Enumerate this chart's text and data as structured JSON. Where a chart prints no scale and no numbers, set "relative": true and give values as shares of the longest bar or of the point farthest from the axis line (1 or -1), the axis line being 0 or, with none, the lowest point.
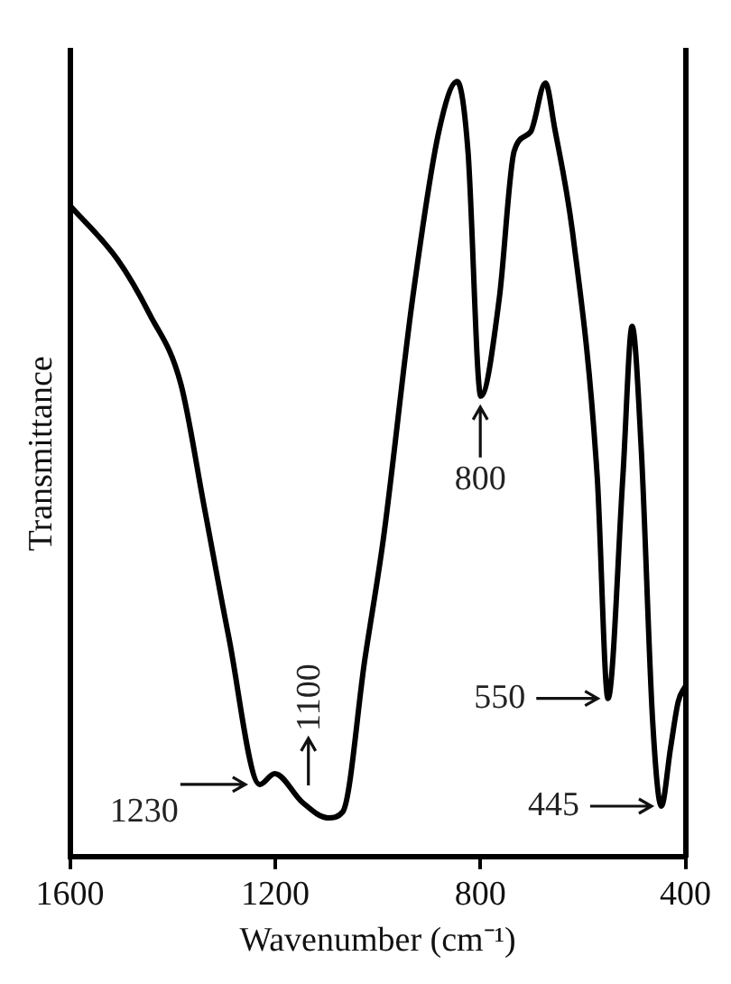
{
  "chart_data": {
    "type": "line",
    "relative": true,
    "xlabel": "Wavenumber (cm⁻¹)",
    "ylabel": "Transmittance",
    "xlim": [
      1600,
      400
    ],
    "xticks": [
      1600,
      1200,
      800,
      400
    ],
    "grid": false,
    "legend": false,
    "marker": "none",
    "line_style": "solid",
    "series": [
      {
        "color": "#000000",
        "x": [
          1600,
          1507,
          1445,
          1384,
          1338,
          1291,
          1230,
          1201,
          1147,
          1097,
          1068,
          1025,
          989,
          932,
          881,
          845,
          824,
          799,
          763,
          734,
          702,
          673,
          655,
          619,
          572,
          551,
          522,
          504,
          486,
          464,
          447,
          429,
          414,
          400
        ],
        "values": [
          0.84,
          0.77,
          0.7,
          0.61,
          0.45,
          0.285,
          0.093,
          0.107,
          0.07,
          0.05,
          0.058,
          0.255,
          0.41,
          0.72,
          0.935,
          1.0,
          0.91,
          0.594,
          0.72,
          0.91,
          0.935,
          0.998,
          0.94,
          0.8,
          0.49,
          0.204,
          0.49,
          0.684,
          0.524,
          0.176,
          0.065,
          0.14,
          0.2,
          0.22
        ]
      }
    ],
    "annotations": [
      {
        "text": "1230",
        "x": 1230,
        "y": 0.093
      },
      {
        "text": "1100",
        "x": 1100,
        "y": 0.05
      },
      {
        "text": "800",
        "x": 800,
        "y": 0.594
      },
      {
        "text": "550",
        "x": 550,
        "y": 0.204
      },
      {
        "text": "445",
        "x": 445,
        "y": 0.065
      }
    ]
  }
}
